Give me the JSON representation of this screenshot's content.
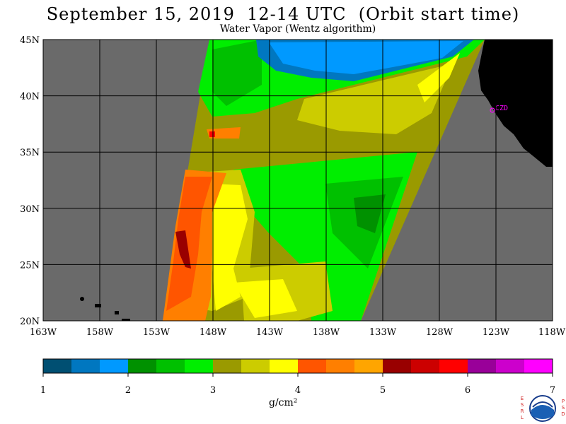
{
  "header": {
    "title": "September 15, 2019  12-14 UTC  (Orbit start time)",
    "subtitle": "Water Vapor (Wentz algorithm)"
  },
  "map": {
    "lat_labels": [
      "45N",
      "40N",
      "35N",
      "30N",
      "25N",
      "20N"
    ],
    "lon_labels": [
      "163W",
      "158W",
      "153W",
      "148W",
      "143W",
      "138W",
      "133W",
      "128W",
      "123W",
      "118W"
    ],
    "lat_range": [
      20,
      45
    ],
    "lon_range": [
      -163,
      -118
    ],
    "station_label": "CZD",
    "colors": {
      "no_data": "#6a6a6a",
      "land": "#000000",
      "grid": "#000000"
    }
  },
  "colorbar": {
    "colors": [
      "#004f72",
      "#0077c0",
      "#0099ff",
      "#009100",
      "#00c000",
      "#00ee00",
      "#9a9a00",
      "#cccc00",
      "#ffff00",
      "#ff5500",
      "#ff7f00",
      "#ffa500",
      "#990000",
      "#cc0000",
      "#ff0000",
      "#990099",
      "#cc00cc",
      "#ff00ff"
    ],
    "tick_labels": [
      "1",
      "2",
      "3",
      "4",
      "5",
      "6",
      "7"
    ],
    "unit": "g/cm²"
  },
  "logo": {
    "left_letters": [
      "E",
      "S",
      "R",
      "L"
    ],
    "right_letters": [
      "P",
      "S",
      "D"
    ],
    "text": "NOAA"
  }
}
